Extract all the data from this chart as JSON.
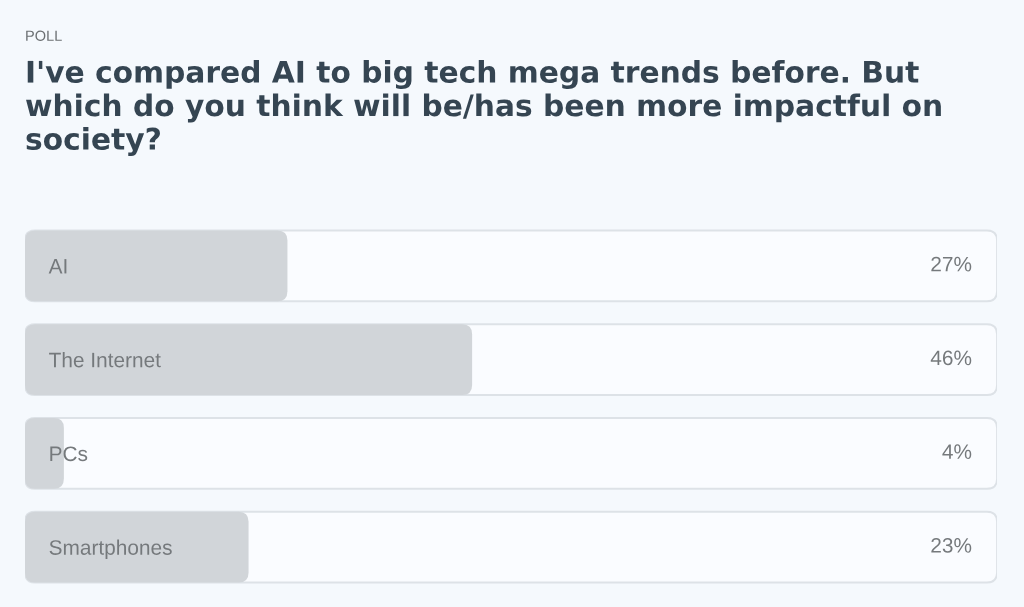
{
  "chart_data": {
    "type": "bar",
    "orientation": "horizontal",
    "subtitle": "POLL",
    "title": "I've compared AI to big tech mega trends before. But which do you think will be/has been more impactful on society?",
    "categories": [
      "AI",
      "The Internet",
      "PCs",
      "Smartphones"
    ],
    "values": [
      27,
      46,
      4,
      23
    ],
    "value_labels": [
      "27%",
      "46%",
      "4%",
      "23%"
    ],
    "color": "#d1d5d9",
    "xlim": [
      0,
      100
    ],
    "tick_labels": "y"
  }
}
